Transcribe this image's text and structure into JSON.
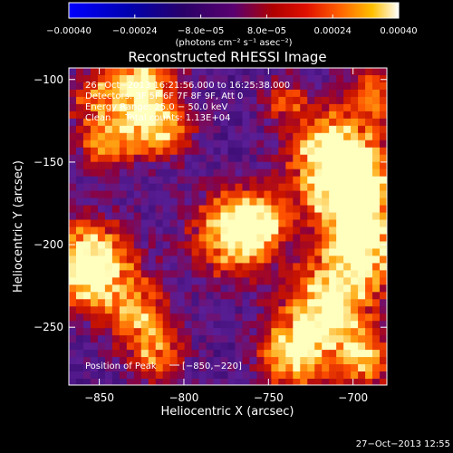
{
  "chart_data": {
    "type": "heatmap",
    "title": "Reconstructed RHESSI Image",
    "xlabel": "Heliocentric X (arcsec)",
    "ylabel": "Heliocentric Y (arcsec)",
    "xlim": [
      -868,
      -680
    ],
    "ylim": [
      -285,
      -93
    ],
    "xticks": [
      -850,
      -800,
      -750,
      -700
    ],
    "xtick_labels": [
      "−850",
      "−800",
      "−750",
      "−700"
    ],
    "yticks": [
      -100,
      -150,
      -200,
      -250
    ],
    "ytick_labels": [
      "−100",
      "−150",
      "−200",
      "−250"
    ],
    "colorbar": {
      "range": [
        -0.0004,
        0.0004
      ],
      "ticks": [
        -0.0004,
        -0.00024,
        -8e-05,
        8e-05,
        0.00024,
        0.0004
      ],
      "tick_labels": [
        "−0.00040",
        "−0.00024",
        "−8.0e−05",
        "8.0e−05",
        "0.00024",
        "0.00040"
      ],
      "units_label": "(photons cm⁻² s⁻¹ asec⁻²)"
    },
    "annotations": [
      "26−Oct−2013 16:21:56.000  to  16:25:38.000",
      "Detectors: 3F 5F 6F 7F 8F 9F, Att 0",
      "Energy Range: 25.0 − 50.0 keV",
      "Clean     Total counts: 1.13E+04"
    ],
    "peak_label": "Position of Peak",
    "peak_value": "[−850,−220]",
    "peak_position": [
      -850,
      -220
    ],
    "footer_timestamp": "27−Oct−2013 12:55"
  }
}
